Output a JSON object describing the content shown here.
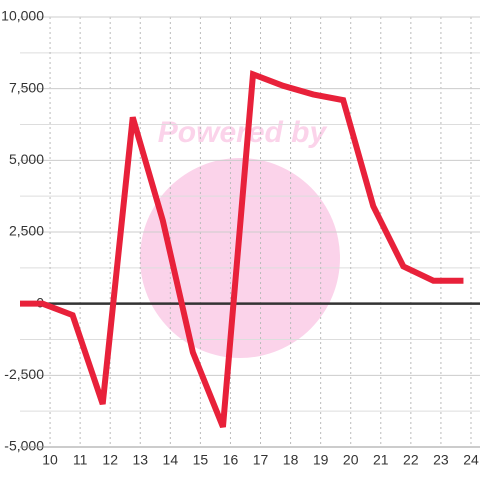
{
  "chart_data": {
    "type": "line",
    "watermark": "Powered by",
    "x": [
      9,
      9.75,
      10.75,
      11.75,
      12.75,
      13.75,
      14.75,
      15.75,
      16.75,
      17.75,
      18.75,
      19.75,
      20.75,
      21.75,
      22.75,
      23.75
    ],
    "series": [
      {
        "color": "#e8213a",
        "values": [
          0,
          0,
          -400,
          -3500,
          6500,
          2900,
          -1700,
          -4300,
          8000,
          7600,
          7300,
          7100,
          3400,
          1300,
          800,
          800
        ]
      }
    ],
    "xlim": [
      9,
      24.3
    ],
    "xticks": [
      10,
      11,
      12,
      13,
      14,
      15,
      16,
      17,
      18,
      19,
      20,
      21,
      22,
      23,
      24
    ],
    "ylim": [
      -5000,
      10000
    ],
    "yticks": [
      {
        "value": -5000,
        "label": "-5,000"
      },
      {
        "value": -2500,
        "label": "-2,500"
      },
      0,
      {
        "value": 2500,
        "label": "2,500"
      },
      {
        "value": 5000,
        "label": "5,000"
      },
      {
        "value": 7500,
        "label": "7,500"
      },
      {
        "value": 10000,
        "label": "10,000"
      }
    ],
    "grid": true
  }
}
